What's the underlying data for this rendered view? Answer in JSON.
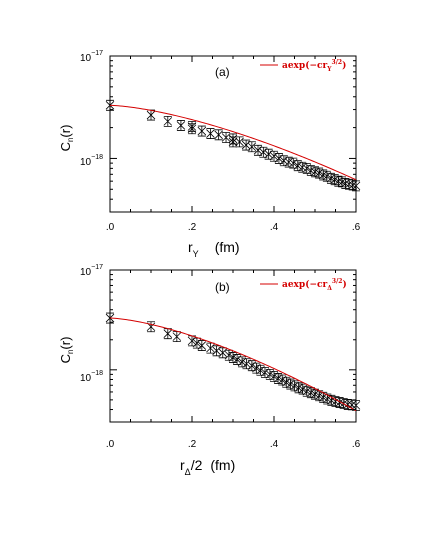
{
  "chart_data": [
    {
      "type": "scatter",
      "panel_label": "(a)",
      "xlabel_main": "r",
      "xlabel_sub": "Y",
      "xlabel_unit": "(fm)",
      "ylabel_main": "C",
      "ylabel_sub": "n",
      "ylabel_arg": "(r)",
      "xlim": [
        0,
        0.6
      ],
      "ylim": [
        3e-19,
        1e-17
      ],
      "yscale": "log",
      "x_ticks": [
        0,
        0.2,
        0.4,
        0.6
      ],
      "x_tick_labels": [
        ".0",
        ".2",
        ".4",
        ".6"
      ],
      "y_ticks": [
        1e-18,
        1e-17
      ],
      "y_tick_bases": [
        "10",
        "10"
      ],
      "y_tick_exps": [
        "−18",
        "−17"
      ],
      "legend": {
        "placement": "top-right",
        "main": "aexp(−cr",
        "sub": "Y",
        "sup": "3/2",
        "close": ")",
        "color": "#d40000"
      },
      "fit": {
        "a": 3.3e-18,
        "c": 3.6,
        "color": "#d40000"
      },
      "points": [
        {
          "x": 0.0,
          "y": 3.3e-18
        },
        {
          "x": 0.1,
          "y": 2.65e-18
        },
        {
          "x": 0.141,
          "y": 2.3e-18
        },
        {
          "x": 0.173,
          "y": 2.1e-18
        },
        {
          "x": 0.2,
          "y": 2.05e-18
        },
        {
          "x": 0.2,
          "y": 1.95e-18
        },
        {
          "x": 0.224,
          "y": 1.85e-18
        },
        {
          "x": 0.245,
          "y": 1.75e-18
        },
        {
          "x": 0.265,
          "y": 1.7e-18
        },
        {
          "x": 0.283,
          "y": 1.6e-18
        },
        {
          "x": 0.3,
          "y": 1.55e-18
        },
        {
          "x": 0.3,
          "y": 1.45e-18
        },
        {
          "x": 0.316,
          "y": 1.45e-18
        },
        {
          "x": 0.332,
          "y": 1.35e-18
        },
        {
          "x": 0.346,
          "y": 1.3e-18
        },
        {
          "x": 0.361,
          "y": 1.2e-18
        },
        {
          "x": 0.374,
          "y": 1.15e-18
        },
        {
          "x": 0.387,
          "y": 1.1e-18
        },
        {
          "x": 0.4,
          "y": 1.05e-18
        },
        {
          "x": 0.412,
          "y": 1e-18
        },
        {
          "x": 0.424,
          "y": 9.5e-19
        },
        {
          "x": 0.436,
          "y": 9.2e-19
        },
        {
          "x": 0.447,
          "y": 9e-19
        },
        {
          "x": 0.458,
          "y": 8.5e-19
        },
        {
          "x": 0.469,
          "y": 8.2e-19
        },
        {
          "x": 0.48,
          "y": 8e-19
        },
        {
          "x": 0.49,
          "y": 7.6e-19
        },
        {
          "x": 0.5,
          "y": 7.4e-19
        },
        {
          "x": 0.51,
          "y": 7.2e-19
        },
        {
          "x": 0.52,
          "y": 6.9e-19
        },
        {
          "x": 0.529,
          "y": 6.7e-19
        },
        {
          "x": 0.539,
          "y": 6.4e-19
        },
        {
          "x": 0.548,
          "y": 6.2e-19
        },
        {
          "x": 0.557,
          "y": 6e-19
        },
        {
          "x": 0.566,
          "y": 5.9e-19
        },
        {
          "x": 0.574,
          "y": 5.7e-19
        },
        {
          "x": 0.583,
          "y": 5.6e-19
        },
        {
          "x": 0.592,
          "y": 5.5e-19
        },
        {
          "x": 0.6,
          "y": 5.4e-19
        }
      ]
    },
    {
      "type": "scatter",
      "panel_label": "(b)",
      "xlabel_main": "r",
      "xlabel_sub": "Δ",
      "xlabel_suffix": "/2",
      "xlabel_unit": "(fm)",
      "ylabel_main": "C",
      "ylabel_sub": "n",
      "ylabel_arg": "(r)",
      "xlim": [
        0,
        0.6
      ],
      "ylim": [
        3e-19,
        1e-17
      ],
      "yscale": "log",
      "x_ticks": [
        0,
        0.2,
        0.4,
        0.6
      ],
      "x_tick_labels": [
        ".0",
        ".2",
        ".4",
        ".6"
      ],
      "y_ticks": [
        1e-18,
        1e-17
      ],
      "y_tick_bases": [
        "10",
        "10"
      ],
      "y_tick_exps": [
        "−18",
        "−17"
      ],
      "legend": {
        "placement": "top-right",
        "main": "aexp(−cr",
        "sub": "Δ",
        "sup": "3/2",
        "close": ")",
        "color": "#d40000"
      },
      "fit": {
        "a": 3.3e-18,
        "c": 4.6,
        "color": "#d40000"
      },
      "points": [
        {
          "x": 0.0,
          "y": 3.3e-18
        },
        {
          "x": 0.1,
          "y": 2.7e-18
        },
        {
          "x": 0.141,
          "y": 2.3e-18
        },
        {
          "x": 0.163,
          "y": 2.15e-18
        },
        {
          "x": 0.2,
          "y": 1.95e-18
        },
        {
          "x": 0.212,
          "y": 1.85e-18
        },
        {
          "x": 0.224,
          "y": 1.75e-18
        },
        {
          "x": 0.245,
          "y": 1.65e-18
        },
        {
          "x": 0.26,
          "y": 1.55e-18
        },
        {
          "x": 0.275,
          "y": 1.48e-18
        },
        {
          "x": 0.29,
          "y": 1.4e-18
        },
        {
          "x": 0.3,
          "y": 1.33e-18
        },
        {
          "x": 0.31,
          "y": 1.27e-18
        },
        {
          "x": 0.322,
          "y": 1.2e-18
        },
        {
          "x": 0.333,
          "y": 1.15e-18
        },
        {
          "x": 0.346,
          "y": 1.1e-18
        },
        {
          "x": 0.357,
          "y": 1.04e-18
        },
        {
          "x": 0.367,
          "y": 9.9e-19
        },
        {
          "x": 0.378,
          "y": 9.4e-19
        },
        {
          "x": 0.39,
          "y": 9e-19
        },
        {
          "x": 0.4,
          "y": 8.6e-19
        },
        {
          "x": 0.41,
          "y": 8.2e-19
        },
        {
          "x": 0.42,
          "y": 7.9e-19
        },
        {
          "x": 0.43,
          "y": 7.5e-19
        },
        {
          "x": 0.44,
          "y": 7.2e-19
        },
        {
          "x": 0.45,
          "y": 6.9e-19
        },
        {
          "x": 0.46,
          "y": 6.6e-19
        },
        {
          "x": 0.47,
          "y": 6.4e-19
        },
        {
          "x": 0.48,
          "y": 6.1e-19
        },
        {
          "x": 0.49,
          "y": 5.9e-19
        },
        {
          "x": 0.5,
          "y": 5.7e-19
        },
        {
          "x": 0.51,
          "y": 5.5e-19
        },
        {
          "x": 0.52,
          "y": 5.3e-19
        },
        {
          "x": 0.53,
          "y": 5.1e-19
        },
        {
          "x": 0.54,
          "y": 4.95e-19
        },
        {
          "x": 0.55,
          "y": 4.8e-19
        },
        {
          "x": 0.56,
          "y": 4.7e-19
        },
        {
          "x": 0.57,
          "y": 4.6e-19
        },
        {
          "x": 0.58,
          "y": 4.5e-19
        },
        {
          "x": 0.59,
          "y": 4.45e-19
        },
        {
          "x": 0.6,
          "y": 4.4e-19
        }
      ]
    }
  ]
}
